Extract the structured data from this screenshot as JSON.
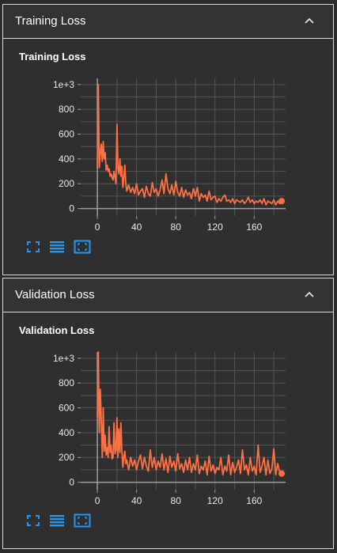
{
  "sections": [
    {
      "header_title": "Training Loss",
      "card_title": "Training Loss",
      "chart_data": {
        "type": "line",
        "title": "Training Loss",
        "xlabel": "",
        "ylabel": "",
        "xlim": [
          -17,
          192
        ],
        "ylim": [
          -60,
          1050
        ],
        "x_ticks": [
          0,
          40,
          80,
          120,
          160
        ],
        "x_tick_labels": [
          "0",
          "40",
          "80",
          "120",
          "160"
        ],
        "y_ticks": [
          0,
          200,
          400,
          600,
          800,
          1000
        ],
        "y_tick_labels": [
          "0",
          "200",
          "400",
          "600",
          "800",
          "1e+3"
        ],
        "grid": true,
        "line_color": "#ff7043",
        "series": [
          {
            "x": [
              0,
              1,
              2,
              3,
              4,
              5,
              6,
              7,
              8,
              9,
              10,
              11,
              12,
              13,
              14,
              15,
              16,
              17,
              18,
              19,
              20,
              21,
              22,
              23,
              24,
              25,
              26,
              27,
              28,
              29,
              30,
              32,
              34,
              36,
              38,
              40,
              42,
              44,
              46,
              48,
              50,
              52,
              54,
              56,
              58,
              60,
              62,
              64,
              66,
              68,
              70,
              72,
              74,
              76,
              78,
              80,
              82,
              84,
              86,
              88,
              90,
              92,
              94,
              96,
              98,
              100,
              102,
              104,
              106,
              108,
              110,
              112,
              114,
              116,
              118,
              120,
              122,
              124,
              126,
              128,
              130,
              132,
              134,
              136,
              138,
              140,
              142,
              144,
              146,
              148,
              150,
              152,
              154,
              156,
              158,
              160,
              162,
              164,
              166,
              168,
              170,
              172,
              174,
              176,
              178,
              180,
              182,
              184,
              186,
              188
            ],
            "y": [
              320,
              1000,
              330,
              450,
              520,
              380,
              540,
              400,
              450,
              310,
              350,
              300,
              320,
              260,
              280,
              250,
              230,
              300,
              250,
              200,
              680,
              330,
              280,
              400,
              260,
              340,
              170,
              240,
              350,
              210,
              140,
              190,
              130,
              170,
              120,
              200,
              110,
              140,
              160,
              90,
              180,
              120,
              100,
              210,
              130,
              160,
              100,
              150,
              230,
              120,
              280,
              160,
              120,
              190,
              110,
              220,
              130,
              100,
              170,
              90,
              150,
              110,
              130,
              80,
              160,
              100,
              170,
              60,
              120,
              90,
              110,
              60,
              140,
              70,
              90,
              100,
              50,
              80,
              60,
              90,
              110,
              60,
              70,
              50,
              80,
              40,
              70,
              60,
              50,
              70,
              40,
              60,
              90,
              50,
              70,
              40,
              60,
              50,
              70,
              40,
              80,
              30,
              60,
              50,
              40,
              70,
              30,
              60,
              40,
              60
            ]
          }
        ]
      }
    },
    {
      "header_title": "Validation Loss",
      "card_title": "Validation Loss",
      "chart_data": {
        "type": "line",
        "title": "Validation Loss",
        "xlabel": "",
        "ylabel": "",
        "xlim": [
          -17,
          192
        ],
        "ylim": [
          -60,
          1050
        ],
        "x_ticks": [
          0,
          40,
          80,
          120,
          160
        ],
        "x_tick_labels": [
          "0",
          "40",
          "80",
          "120",
          "160"
        ],
        "y_ticks": [
          0,
          200,
          400,
          600,
          800,
          1000
        ],
        "y_tick_labels": [
          "0",
          "200",
          "400",
          "600",
          "800",
          "1e+3"
        ],
        "grid": true,
        "line_color": "#ff7043",
        "series": [
          {
            "x": [
              0,
              1,
              2,
              3,
              4,
              5,
              6,
              7,
              8,
              9,
              10,
              11,
              12,
              13,
              14,
              15,
              16,
              17,
              18,
              19,
              20,
              21,
              22,
              23,
              24,
              25,
              26,
              27,
              28,
              29,
              30,
              32,
              34,
              36,
              38,
              40,
              42,
              44,
              46,
              48,
              50,
              52,
              54,
              56,
              58,
              60,
              62,
              64,
              66,
              68,
              70,
              72,
              74,
              76,
              78,
              80,
              82,
              84,
              86,
              88,
              90,
              92,
              94,
              96,
              98,
              100,
              102,
              104,
              106,
              108,
              110,
              112,
              114,
              116,
              118,
              120,
              122,
              124,
              126,
              128,
              130,
              132,
              134,
              136,
              138,
              140,
              142,
              144,
              146,
              148,
              150,
              152,
              154,
              156,
              158,
              160,
              162,
              164,
              166,
              168,
              170,
              172,
              174,
              176,
              178,
              180,
              182,
              184,
              186,
              188
            ],
            "y": [
              520,
              1050,
              400,
              750,
              500,
              200,
              600,
              250,
              380,
              220,
              280,
              200,
              450,
              240,
              300,
              190,
              200,
              480,
              230,
              260,
              520,
              200,
              430,
              240,
              480,
              260,
              120,
              200,
              250,
              150,
              180,
              100,
              200,
              130,
              180,
              100,
              170,
              220,
              110,
              200,
              130,
              90,
              260,
              120,
              200,
              100,
              170,
              120,
              230,
              100,
              190,
              80,
              210,
              120,
              170,
              90,
              230,
              110,
              150,
              80,
              180,
              100,
              200,
              80,
              150,
              100,
              220,
              70,
              130,
              100,
              170,
              60,
              210,
              90,
              140,
              70,
              120,
              100,
              200,
              60,
              130,
              90,
              220,
              60,
              160,
              80,
              120,
              180,
              70,
              260,
              100,
              140,
              60,
              200,
              90,
              130,
              60,
              300,
              80,
              130,
              200,
              60,
              180,
              70,
              110,
              270,
              60,
              150,
              80,
              70
            ]
          }
        ]
      }
    }
  ],
  "toolbar": {
    "icons": [
      "fullscreen-icon",
      "list-icon",
      "fit-domain-icon"
    ],
    "accent": "#2196f3"
  },
  "colors": {
    "background": "#2b2b2b",
    "card": "#2f2f2f",
    "border": "#d9d9d9",
    "grid": "#555555",
    "axis": "#9e9e9e"
  }
}
